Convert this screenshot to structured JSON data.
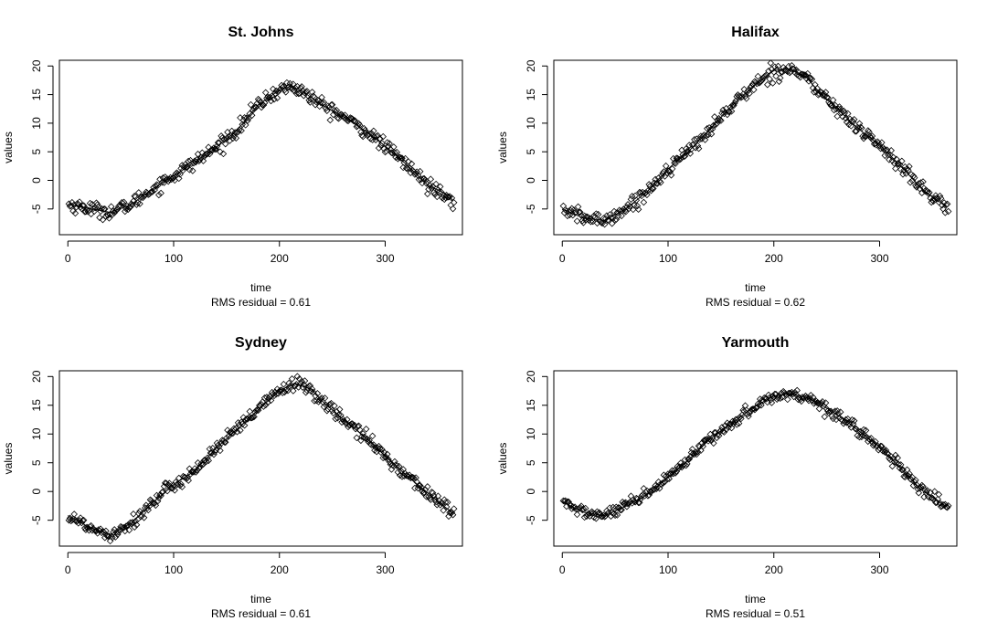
{
  "chart_data": [
    {
      "type": "scatter",
      "title": "St. Johns",
      "xlabel": "time",
      "ylabel": "values",
      "note": "RMS residual = 0.61",
      "xlim": [
        -8,
        373
      ],
      "ylim": [
        -9.5,
        21
      ],
      "xticks": [
        0,
        100,
        200,
        300
      ],
      "yticks": [
        -5,
        0,
        5,
        10,
        15,
        20
      ],
      "fit_curve": {
        "x": [
          0,
          20,
          40,
          60,
          80,
          100,
          120,
          140,
          160,
          180,
          200,
          210,
          220,
          240,
          260,
          280,
          300,
          320,
          340,
          360,
          365
        ],
        "y": [
          -4.2,
          -4.9,
          -5.6,
          -4.2,
          -1.5,
          0.8,
          3.2,
          5.7,
          8.8,
          13.2,
          15.8,
          16.4,
          15.8,
          13.2,
          11.2,
          8.8,
          6.0,
          2.8,
          -0.8,
          -2.6,
          -3.8
        ]
      },
      "residual_amplitude": 0.61
    },
    {
      "type": "scatter",
      "title": "Halifax",
      "xlabel": "time",
      "ylabel": "values",
      "note": "RMS residual = 0.62",
      "xlim": [
        -8,
        373
      ],
      "ylim": [
        -9.5,
        21
      ],
      "xticks": [
        0,
        100,
        200,
        300
      ],
      "yticks": [
        -5,
        0,
        5,
        10,
        15,
        20
      ],
      "fit_curve": {
        "x": [
          0,
          20,
          40,
          60,
          80,
          100,
          120,
          140,
          160,
          180,
          200,
          215,
          230,
          240,
          260,
          280,
          300,
          320,
          340,
          360,
          365
        ],
        "y": [
          -5.0,
          -6.6,
          -7.0,
          -5.0,
          -2.0,
          2.0,
          5.2,
          9.0,
          13.0,
          16.4,
          19.2,
          19.5,
          18.2,
          16.0,
          12.5,
          9.0,
          6.2,
          2.5,
          -1.5,
          -4.2,
          -4.8
        ]
      },
      "residual_amplitude": 0.62
    },
    {
      "type": "scatter",
      "title": "Sydney",
      "xlabel": "time",
      "ylabel": "values",
      "note": "RMS residual = 0.61",
      "xlim": [
        -8,
        373
      ],
      "ylim": [
        -9.5,
        21
      ],
      "xticks": [
        0,
        100,
        200,
        300
      ],
      "yticks": [
        -5,
        0,
        5,
        10,
        15,
        20
      ],
      "fit_curve": {
        "x": [
          0,
          20,
          40,
          60,
          80,
          100,
          120,
          140,
          160,
          180,
          200,
          215,
          230,
          240,
          260,
          280,
          300,
          320,
          340,
          360,
          365
        ],
        "y": [
          -4.2,
          -6.2,
          -7.5,
          -5.5,
          -2.0,
          1.2,
          3.6,
          7.5,
          10.8,
          14.2,
          17.6,
          18.8,
          17.8,
          15.8,
          12.6,
          9.6,
          6.2,
          2.8,
          -0.2,
          -3.2,
          -4.2
        ]
      },
      "residual_amplitude": 0.61
    },
    {
      "type": "scatter",
      "title": "Yarmouth",
      "xlabel": "time",
      "ylabel": "values",
      "note": "RMS residual = 0.51",
      "xlim": [
        -8,
        373
      ],
      "ylim": [
        -9.5,
        21
      ],
      "xticks": [
        0,
        100,
        200,
        300
      ],
      "yticks": [
        -5,
        0,
        5,
        10,
        15,
        20
      ],
      "fit_curve": {
        "x": [
          0,
          20,
          40,
          60,
          80,
          100,
          120,
          140,
          160,
          180,
          200,
          215,
          230,
          240,
          260,
          280,
          300,
          320,
          340,
          360,
          365
        ],
        "y": [
          -1.8,
          -3.6,
          -4.2,
          -2.6,
          -0.6,
          2.4,
          5.6,
          9.2,
          11.8,
          14.6,
          16.6,
          17.0,
          16.4,
          15.6,
          13.4,
          10.6,
          7.8,
          4.0,
          0.2,
          -2.2,
          -2.8
        ]
      },
      "residual_amplitude": 0.51
    }
  ]
}
